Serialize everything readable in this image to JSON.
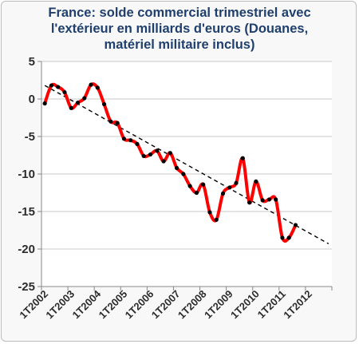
{
  "chart_data": {
    "type": "line",
    "title_lines": [
      "France: solde commercial trimestriel avec",
      "l'extérieur en milliards d'euros (Douanes,",
      "matériel militaire inclus)"
    ],
    "xlabel": "",
    "ylabel": "",
    "ylim": [
      -25,
      5
    ],
    "y_ticks": [
      5,
      0,
      -5,
      -10,
      -15,
      -20,
      -25
    ],
    "x_tick_labels": [
      "1T2002",
      "1T2003",
      "1T2004",
      "1T2005",
      "1T2006",
      "1T2007",
      "1T2008",
      "1T2009",
      "1T2010",
      "1T2011",
      "1T2012"
    ],
    "grid": "horizontal",
    "legend": "none",
    "colors": {
      "line": "#ff0000",
      "markers": "#000000",
      "trend": "#000000",
      "grid": "#c8c8c8",
      "plot_background": "#ffffff",
      "title": "#1f3f6e"
    },
    "series": [
      {
        "values": [
          -0.6,
          1.8,
          1.6,
          0.9,
          -1.2,
          -0.5,
          0.1,
          1.9,
          1.5,
          -0.7,
          -3.0,
          -3.2,
          -5.3,
          -5.5,
          -6.0,
          -7.6,
          -7.4,
          -6.9,
          -8.3,
          -7.2,
          -9.2,
          -10.0,
          -11.6,
          -12.5,
          -11.4,
          -15.1,
          -16.1,
          -12.6,
          -11.8,
          -11.2,
          -7.9,
          -13.8,
          -11.0,
          -13.5,
          -13.4,
          -13.4,
          -18.5,
          -18.5,
          -16.8
        ]
      }
    ],
    "trend": {
      "start": [
        0,
        1.8
      ],
      "end": [
        43,
        -19.3
      ],
      "style": "dashed"
    }
  }
}
